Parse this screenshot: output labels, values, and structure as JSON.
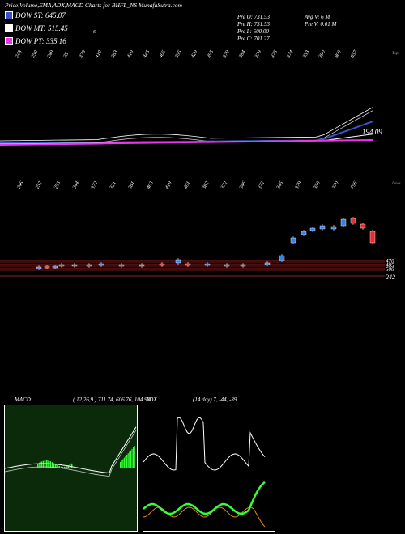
{
  "header": {
    "title": "Price,Volume,EMA,ADX,MACD Charts for BHFL_NS MunafaSutra.com",
    "legends": [
      {
        "label": "DOW ST: 645.07",
        "color": "#3a52c8"
      },
      {
        "label": "DOW MT: 515.45",
        "color": "#ffffff"
      },
      {
        "label": "DOW PT: 335.16",
        "color": "#ee33ee"
      }
    ],
    "stray_mark": "6",
    "price_info": [
      {
        "label": "Pre O: 731.53"
      },
      {
        "label": "Pre H: 731.53"
      },
      {
        "label": "Pre L: 600.00"
      },
      {
        "label": "Pre C: 701.27"
      }
    ],
    "avg_info": [
      {
        "label": "Avg V: 6 M"
      },
      {
        "label": "Pre V: 0.01 M"
      }
    ]
  },
  "top_chart": {
    "tops_label": "Tops",
    "top_values": [
      "248",
      "250",
      "249",
      "28",
      "379",
      "410",
      "383",
      "419",
      "445",
      "405",
      "395",
      "429",
      "395",
      "379",
      "384",
      "379",
      "378",
      "374",
      "353",
      "390",
      "800",
      "857"
    ],
    "ema_right_label": "194.09",
    "lows_label": "Lows",
    "low_values": [
      "246",
      "252",
      "253",
      "244",
      "372",
      "321",
      "381",
      "403",
      "419",
      "401",
      "362",
      "372",
      "346",
      "372",
      "345",
      "379",
      "350",
      "370",
      "796"
    ]
  },
  "price_axis": {
    "labels": [
      "470",
      "485",
      "500",
      "242"
    ]
  },
  "macd": {
    "label": "MACD:",
    "values": "( 12,26,9 ) 711.74,  606.76,  104.98"
  },
  "adx": {
    "label": "ADX",
    "values": "(14  day) 7,  -44,  -39"
  },
  "colors": {
    "background": "#000000",
    "macd_bg": "#0a2a0a",
    "macd_hist": "#33ff33",
    "adx_plus": "#33ff33",
    "adx_minus": "#e08a1a",
    "adx_line": "#ffffff",
    "candle_up": "#3a7fe8",
    "candle_down": "#e03030",
    "ema_short": "#3a52c8",
    "ema_pt": "#ee33ee"
  }
}
